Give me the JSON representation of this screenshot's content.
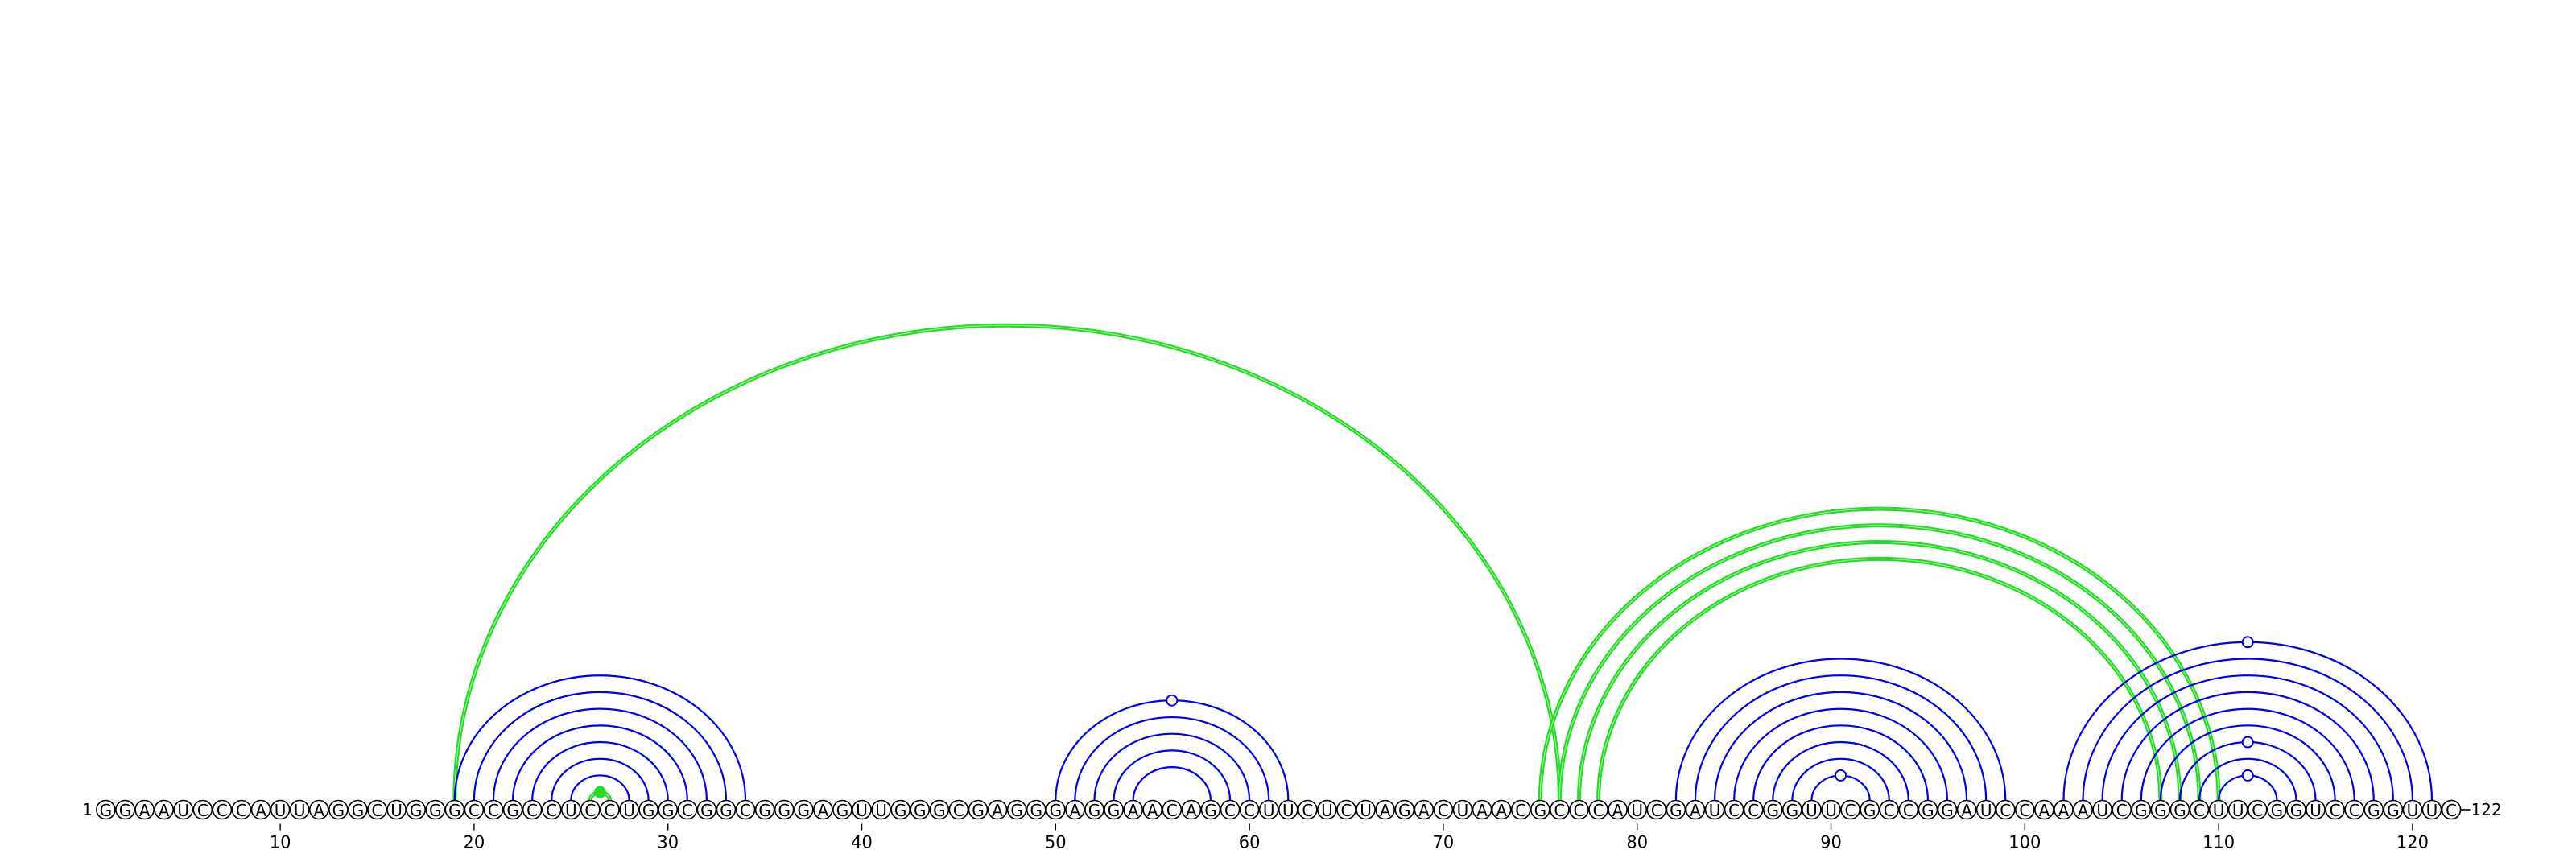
{
  "sequence": "GGAAUCCCAUUAGGCUGGGCCGCCUCCUGGCGGCGGGAGUUGGGCGAGGGAGGAACAGCCUUCUCUAGACUAACGCCCAUCGAUCCGGUUCGCCGGAUCCAAAUCGGGCUUCGGUCCGGUUC",
  "labels": {
    "start_index": "1",
    "end_index": "122"
  },
  "ticks": [
    {
      "pos": 10,
      "label": "10"
    },
    {
      "pos": 20,
      "label": "20"
    },
    {
      "pos": 30,
      "label": "30"
    },
    {
      "pos": 40,
      "label": "40"
    },
    {
      "pos": 50,
      "label": "50"
    },
    {
      "pos": 60,
      "label": "60"
    },
    {
      "pos": 70,
      "label": "70"
    },
    {
      "pos": 80,
      "label": "80"
    },
    {
      "pos": 90,
      "label": "90"
    },
    {
      "pos": 100,
      "label": "100"
    },
    {
      "pos": 110,
      "label": "110"
    },
    {
      "pos": 120,
      "label": "120"
    }
  ],
  "colors": {
    "primary_pairs": "#0000ee",
    "alt_pairs": "#22dd22"
  },
  "pairs_primary": [
    [
      19,
      34
    ],
    [
      20,
      33
    ],
    [
      21,
      32
    ],
    [
      22,
      31
    ],
    [
      23,
      30
    ],
    [
      24,
      29
    ],
    [
      25,
      28
    ],
    [
      50,
      62
    ],
    [
      51,
      61
    ],
    [
      52,
      60
    ],
    [
      53,
      59
    ],
    [
      54,
      58
    ],
    [
      82,
      99
    ],
    [
      83,
      98
    ],
    [
      84,
      97
    ],
    [
      85,
      96
    ],
    [
      86,
      95
    ],
    [
      87,
      94
    ],
    [
      88,
      93
    ],
    [
      89,
      92
    ],
    [
      102,
      121
    ],
    [
      103,
      120
    ],
    [
      104,
      119
    ],
    [
      105,
      118
    ],
    [
      106,
      117
    ],
    [
      107,
      116
    ],
    [
      108,
      115
    ],
    [
      109,
      114
    ],
    [
      110,
      113
    ]
  ],
  "pairs_alt": [
    [
      19,
      76
    ],
    [
      75,
      110
    ],
    [
      76,
      109
    ],
    [
      77,
      108
    ],
    [
      78,
      107
    ],
    [
      26,
      27
    ]
  ],
  "markers": [
    {
      "pos": 26.5,
      "pair_level": "hairpin_19_34",
      "filled": true,
      "color": "alt"
    },
    {
      "pos": 56,
      "pair_level": "outer_50_62",
      "filled": false,
      "color": "primary"
    },
    {
      "pos": 90.5,
      "pair_level": "inner_89_92",
      "filled": false,
      "color": "primary"
    },
    {
      "pos": 111.5,
      "pair_level": "outer_102_121",
      "filled": false,
      "color": "primary"
    },
    {
      "pos": 111.5,
      "pair_level": "mid_108_115",
      "filled": false,
      "color": "primary"
    },
    {
      "pos": 111.5,
      "pair_level": "inner_110_113",
      "filled": false,
      "color": "primary"
    }
  ]
}
